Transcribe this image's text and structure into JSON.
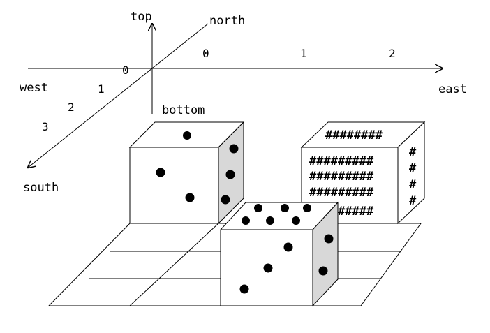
{
  "axes": {
    "top": "top",
    "bottom": "bottom",
    "north": "north",
    "south": "south",
    "east": "east",
    "west": "west"
  },
  "east_ticks": [
    "0",
    "1",
    "2"
  ],
  "south_ticks": [
    "0",
    "1",
    "2",
    "3"
  ],
  "hash_die": {
    "top_row": "########",
    "front_rows": [
      "#########",
      "#########",
      "#########",
      "#########"
    ],
    "side_column": [
      "#",
      "#",
      "#",
      "#"
    ]
  },
  "colors": {
    "line": "#000000",
    "shaded_face": "#d8d8d8",
    "background": "#ffffff"
  }
}
